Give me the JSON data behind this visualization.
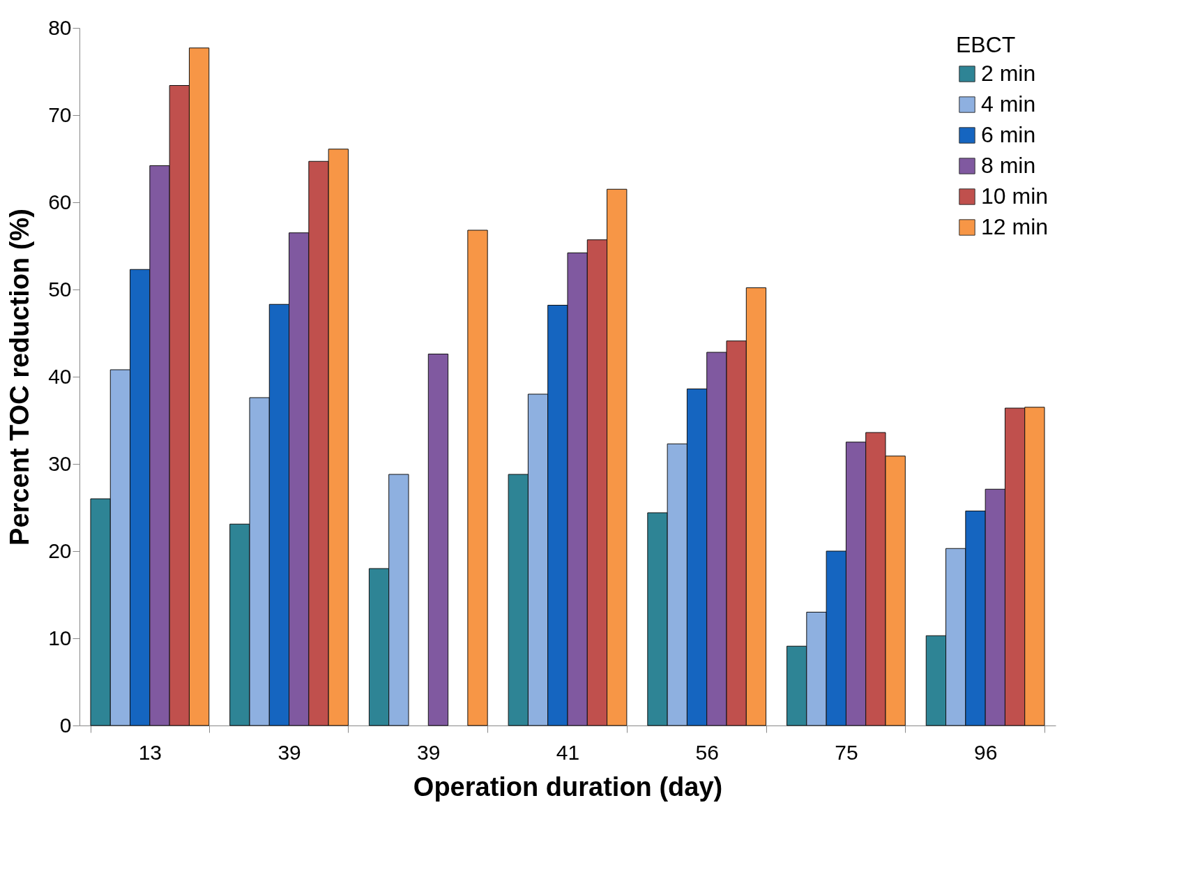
{
  "chart_data": {
    "type": "bar",
    "xlabel": "Operation duration (day)",
    "ylabel": "Percent TOC reduction (%)",
    "legend_title": "EBCT",
    "categories": [
      "13",
      "39",
      "39",
      "41",
      "56",
      "75",
      "96"
    ],
    "series": [
      {
        "name": "2 min",
        "color": "#2e8495",
        "values": [
          26.0,
          23.1,
          18.0,
          28.8,
          24.4,
          9.1,
          10.3
        ]
      },
      {
        "name": "4 min",
        "color": "#8eb0e0",
        "values": [
          40.8,
          37.6,
          28.8,
          38.0,
          32.3,
          13.0,
          20.3
        ]
      },
      {
        "name": "6 min",
        "color": "#1565c0",
        "values": [
          52.3,
          48.3,
          null,
          48.2,
          38.6,
          20.0,
          24.6
        ]
      },
      {
        "name": "8 min",
        "color": "#8059a0",
        "values": [
          64.2,
          56.5,
          42.6,
          54.2,
          42.8,
          32.5,
          27.1
        ]
      },
      {
        "name": "10 min",
        "color": "#c0504d",
        "values": [
          73.4,
          64.7,
          null,
          55.7,
          44.1,
          33.6,
          36.4
        ]
      },
      {
        "name": "12 min",
        "color": "#f79646",
        "values": [
          77.7,
          66.1,
          56.8,
          61.5,
          50.2,
          30.9,
          36.5
        ]
      }
    ],
    "ylim": [
      0,
      80
    ],
    "yticks": [
      0,
      10,
      20,
      30,
      40,
      50,
      60,
      70,
      80
    ],
    "grid": false,
    "legend": "top right"
  }
}
